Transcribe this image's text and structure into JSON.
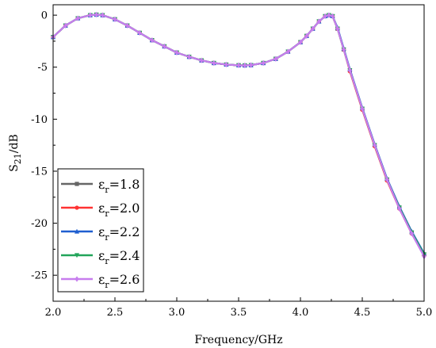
{
  "chart_data": {
    "type": "line",
    "xlabel": "Frequency/GHz",
    "ylabel": {
      "main": "S",
      "sub": "21",
      "rest": "/dB"
    },
    "xlim": [
      2.0,
      5.0
    ],
    "ylim": [
      -27.5,
      1.0
    ],
    "x_ticks": [
      "2.0",
      "2.5",
      "3.0",
      "3.5",
      "4.0",
      "4.5",
      "5.0"
    ],
    "y_ticks": [
      "0",
      "-5",
      "-10",
      "-15",
      "-20",
      "-25"
    ],
    "legend_position": "bottom-left",
    "series": [
      {
        "name": {
          "main": "ε",
          "sub": "r",
          "rest": "=1.8"
        },
        "color": "#666666",
        "marker": "square",
        "x": [
          2.0,
          2.1,
          2.2,
          2.3,
          2.35,
          2.4,
          2.5,
          2.6,
          2.7,
          2.8,
          2.9,
          3.0,
          3.1,
          3.2,
          3.3,
          3.4,
          3.5,
          3.55,
          3.6,
          3.7,
          3.8,
          3.9,
          4.0,
          4.05,
          4.1,
          4.15,
          4.2,
          4.23,
          4.26,
          4.3,
          4.35,
          4.4,
          4.5,
          4.6,
          4.7,
          4.8,
          4.9,
          5.0
        ],
        "y": [
          -2.1,
          -1.0,
          -0.3,
          0.0,
          0.05,
          0.0,
          -0.4,
          -1.0,
          -1.7,
          -2.4,
          -3.0,
          -3.6,
          -4.0,
          -4.35,
          -4.6,
          -4.75,
          -4.82,
          -4.83,
          -4.8,
          -4.6,
          -4.2,
          -3.5,
          -2.6,
          -2.0,
          -1.3,
          -0.6,
          -0.1,
          0.0,
          -0.1,
          -1.3,
          -3.3,
          -5.3,
          -9.0,
          -12.5,
          -15.8,
          -18.5,
          -20.9,
          -23.0
        ]
      },
      {
        "name": {
          "main": "ε",
          "sub": "r",
          "rest": "=2.0"
        },
        "color": "#ff3333",
        "marker": "circle",
        "x": [
          2.0,
          2.1,
          2.2,
          2.3,
          2.35,
          2.4,
          2.5,
          2.6,
          2.7,
          2.8,
          2.9,
          3.0,
          3.1,
          3.2,
          3.3,
          3.4,
          3.5,
          3.55,
          3.6,
          3.7,
          3.8,
          3.9,
          4.0,
          4.05,
          4.1,
          4.15,
          4.2,
          4.23,
          4.26,
          4.3,
          4.35,
          4.4,
          4.5,
          4.6,
          4.7,
          4.8,
          4.9,
          5.0
        ],
        "y": [
          -2.1,
          -1.0,
          -0.3,
          0.0,
          0.05,
          0.0,
          -0.4,
          -1.0,
          -1.7,
          -2.4,
          -3.0,
          -3.6,
          -4.0,
          -4.35,
          -4.6,
          -4.75,
          -4.82,
          -4.83,
          -4.8,
          -4.6,
          -4.2,
          -3.5,
          -2.6,
          -2.0,
          -1.3,
          -0.6,
          -0.1,
          0.0,
          -0.1,
          -1.3,
          -3.3,
          -5.4,
          -9.1,
          -12.6,
          -15.9,
          -18.6,
          -21.0,
          -23.1
        ]
      },
      {
        "name": {
          "main": "ε",
          "sub": "r",
          "rest": "=2.2"
        },
        "color": "#1f5fd0",
        "marker": "triangle",
        "x": [
          2.0,
          2.1,
          2.2,
          2.3,
          2.35,
          2.4,
          2.5,
          2.6,
          2.7,
          2.8,
          2.9,
          3.0,
          3.1,
          3.2,
          3.3,
          3.4,
          3.5,
          3.55,
          3.6,
          3.7,
          3.8,
          3.9,
          4.0,
          4.05,
          4.1,
          4.15,
          4.2,
          4.23,
          4.26,
          4.3,
          4.35,
          4.4,
          4.5,
          4.6,
          4.7,
          4.8,
          4.9,
          5.0
        ],
        "y": [
          -2.1,
          -1.0,
          -0.3,
          0.0,
          0.05,
          0.0,
          -0.4,
          -1.0,
          -1.7,
          -2.4,
          -3.0,
          -3.6,
          -4.0,
          -4.35,
          -4.6,
          -4.75,
          -4.82,
          -4.83,
          -4.8,
          -4.6,
          -4.2,
          -3.5,
          -2.6,
          -2.0,
          -1.3,
          -0.6,
          -0.1,
          0.0,
          -0.1,
          -1.2,
          -3.2,
          -5.2,
          -8.9,
          -12.4,
          -15.7,
          -18.4,
          -20.8,
          -22.9
        ]
      },
      {
        "name": {
          "main": "ε",
          "sub": "r",
          "rest": "=2.4"
        },
        "color": "#22a55a",
        "marker": "triangle-down",
        "x": [
          2.0,
          2.1,
          2.2,
          2.3,
          2.35,
          2.4,
          2.5,
          2.6,
          2.7,
          2.8,
          2.9,
          3.0,
          3.1,
          3.2,
          3.3,
          3.4,
          3.5,
          3.55,
          3.6,
          3.7,
          3.8,
          3.9,
          4.0,
          4.05,
          4.1,
          4.15,
          4.2,
          4.23,
          4.26,
          4.3,
          4.35,
          4.4,
          4.5,
          4.6,
          4.7,
          4.8,
          4.9,
          5.0
        ],
        "y": [
          -2.1,
          -1.0,
          -0.3,
          0.0,
          0.05,
          0.0,
          -0.4,
          -1.0,
          -1.7,
          -2.4,
          -3.0,
          -3.6,
          -4.0,
          -4.35,
          -4.6,
          -4.75,
          -4.82,
          -4.83,
          -4.8,
          -4.6,
          -4.2,
          -3.5,
          -2.6,
          -2.0,
          -1.3,
          -0.6,
          -0.1,
          0.0,
          -0.1,
          -1.3,
          -3.3,
          -5.3,
          -9.0,
          -12.5,
          -15.8,
          -18.5,
          -20.9,
          -23.0
        ]
      },
      {
        "name": {
          "main": "ε",
          "sub": "r",
          "rest": "=2.6"
        },
        "color": "#c77dee",
        "marker": "diamond",
        "x": [
          2.0,
          2.1,
          2.2,
          2.3,
          2.35,
          2.4,
          2.5,
          2.6,
          2.7,
          2.8,
          2.9,
          3.0,
          3.1,
          3.2,
          3.3,
          3.4,
          3.5,
          3.55,
          3.6,
          3.7,
          3.8,
          3.9,
          4.0,
          4.05,
          4.1,
          4.15,
          4.2,
          4.23,
          4.26,
          4.3,
          4.35,
          4.4,
          4.5,
          4.6,
          4.7,
          4.8,
          4.9,
          5.0
        ],
        "y": [
          -2.1,
          -1.0,
          -0.3,
          0.0,
          0.05,
          0.0,
          -0.4,
          -1.0,
          -1.7,
          -2.4,
          -3.0,
          -3.6,
          -4.0,
          -4.35,
          -4.6,
          -4.75,
          -4.82,
          -4.83,
          -4.8,
          -4.6,
          -4.2,
          -3.5,
          -2.6,
          -2.0,
          -1.3,
          -0.6,
          -0.1,
          0.0,
          -0.1,
          -1.3,
          -3.3,
          -5.3,
          -9.0,
          -12.5,
          -15.8,
          -18.6,
          -21.0,
          -23.2
        ]
      }
    ]
  }
}
